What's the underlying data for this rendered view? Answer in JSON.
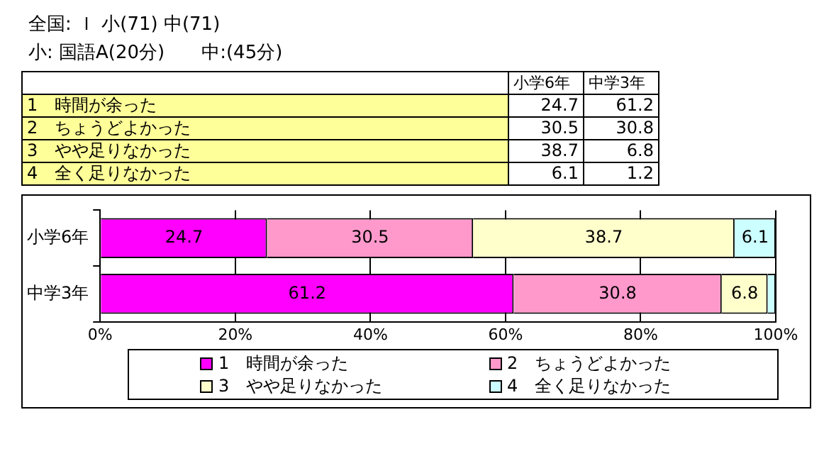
{
  "chart_data": [
    {
      "type": "other",
      "title": "全国: Ｉ 小(71) 中(71)",
      "subtitle": "小: 国語A(20分)　　中:(45分)",
      "categories": [
        "小学6年",
        "中学3年"
      ],
      "series": [
        {
          "name": "1　時間が余った",
          "values": [
            24.7,
            61.2
          ]
        },
        {
          "name": "2　ちょうどよかった",
          "values": [
            30.5,
            30.8
          ]
        },
        {
          "name": "3　やや足りなかった",
          "values": [
            38.7,
            6.8
          ]
        },
        {
          "name": "4　全く足りなかった",
          "values": [
            6.1,
            1.2
          ]
        }
      ],
      "data_labels": true
    },
    {
      "type": "bar",
      "orientation": "horizontal",
      "stacked": true,
      "categories": [
        "小学6年",
        "中学3年"
      ],
      "series": [
        {
          "name": "1　時間が余った",
          "color": "#ff00ff",
          "values": [
            24.7,
            61.2
          ],
          "value_labels": [
            "24.7",
            "61.2"
          ]
        },
        {
          "name": "2　ちょうどよかった",
          "color": "#ff99cc",
          "values": [
            30.5,
            30.8
          ],
          "value_labels": [
            "30.5",
            "30.8"
          ]
        },
        {
          "name": "3　やや足りなかった",
          "color": "#ffffcc",
          "values": [
            38.7,
            6.8
          ],
          "value_labels": [
            "38.7",
            "6.8"
          ]
        },
        {
          "name": "4　全く足りなかった",
          "color": "#ccffff",
          "values": [
            6.1,
            1.2
          ],
          "value_labels": [
            "6.1",
            null
          ]
        }
      ],
      "xlim": [
        0,
        100
      ],
      "xticks": [
        {
          "value": 0,
          "label": "0%"
        },
        {
          "value": 20,
          "label": "20%"
        },
        {
          "value": 40,
          "label": "40%"
        },
        {
          "value": 60,
          "label": "60%"
        },
        {
          "value": 80,
          "label": "80%"
        },
        {
          "value": 100,
          "label": "100%"
        }
      ],
      "grid": "x",
      "legend": "bottom"
    }
  ]
}
